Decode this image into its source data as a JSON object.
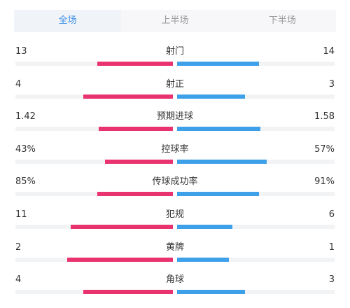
{
  "tabs": [
    {
      "label": "全场",
      "active": true
    },
    {
      "label": "上半场",
      "active": false
    },
    {
      "label": "下半场",
      "active": false
    }
  ],
  "colors": {
    "home": "#e8336f",
    "away": "#3fa0ea",
    "accent": "#3e8fe8"
  },
  "stats": [
    {
      "label": "射门",
      "home": "13",
      "away": "14",
      "home_ratio": 0.48,
      "away_ratio": 0.52
    },
    {
      "label": "射正",
      "home": "4",
      "away": "3",
      "home_ratio": 0.57,
      "away_ratio": 0.43
    },
    {
      "label": "预期进球",
      "home": "1.42",
      "away": "1.58",
      "home_ratio": 0.47,
      "away_ratio": 0.53
    },
    {
      "label": "控球率",
      "home": "43%",
      "away": "57%",
      "home_ratio": 0.43,
      "away_ratio": 0.57
    },
    {
      "label": "传球成功率",
      "home": "85%",
      "away": "91%",
      "home_ratio": 0.48,
      "away_ratio": 0.52
    },
    {
      "label": "犯规",
      "home": "11",
      "away": "6",
      "home_ratio": 0.65,
      "away_ratio": 0.35
    },
    {
      "label": "黄牌",
      "home": "2",
      "away": "1",
      "home_ratio": 0.67,
      "away_ratio": 0.33
    },
    {
      "label": "角球",
      "home": "4",
      "away": "3",
      "home_ratio": 0.57,
      "away_ratio": 0.43
    }
  ]
}
